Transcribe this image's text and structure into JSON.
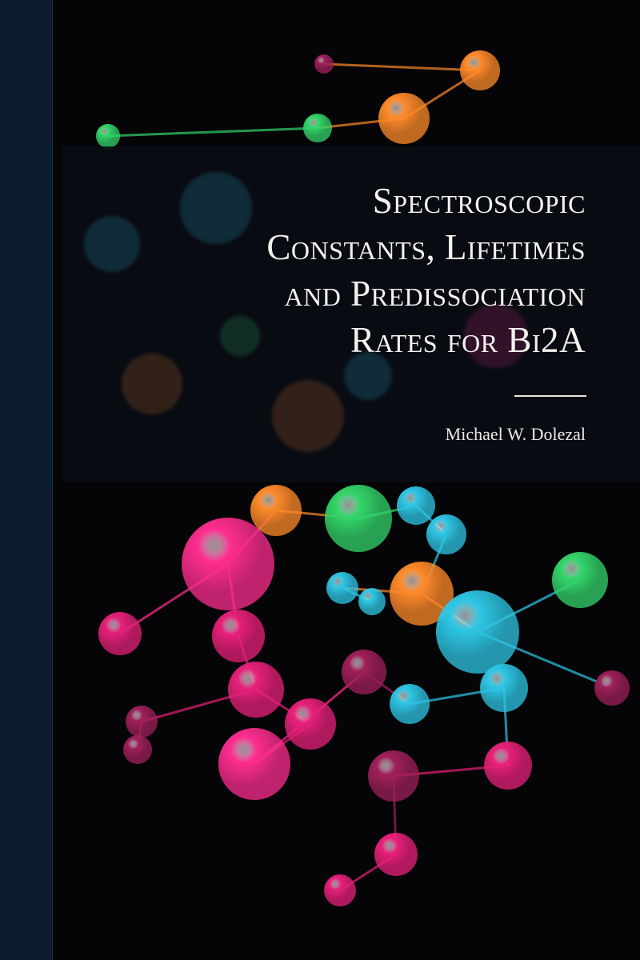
{
  "cover": {
    "title_lines": [
      "Spectroscopic",
      "Constants, Lifetimes",
      "and Predissociation",
      "Rates for Bi2A"
    ],
    "author": "Michael W. Dolezal"
  },
  "colors": {
    "spine": "#0b1b30",
    "background": "#050507",
    "text": "#f4f2ee",
    "molecule_palette": [
      "#ff2d8f",
      "#e8207a",
      "#2ec7e6",
      "#33d66b",
      "#ff8a2a",
      "#a0205a"
    ]
  }
}
